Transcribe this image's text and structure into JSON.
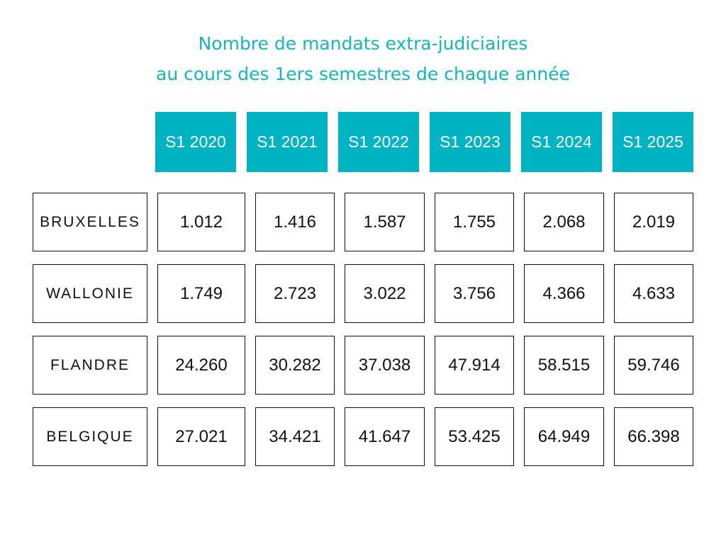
{
  "chart_data": {
    "type": "table",
    "title": "Nombre de mandats extra-judiciaires",
    "subtitle": "au cours des 1ers semestres de chaque année",
    "columns": [
      "S1 2020",
      "S1 2021",
      "S1 2022",
      "S1 2023",
      "S1 2024",
      "S1 2025"
    ],
    "rows": [
      {
        "label": "BRUXELLES",
        "values": [
          "1.012",
          "1.416",
          "1.587",
          "1.755",
          "2.068",
          "2.019"
        ]
      },
      {
        "label": "WALLONIE",
        "values": [
          "1.749",
          "2.723",
          "3.022",
          "3.756",
          "4.366",
          "4.633"
        ]
      },
      {
        "label": "FLANDRE",
        "values": [
          "24.260",
          "30.282",
          "37.038",
          "47.914",
          "58.515",
          "59.746"
        ]
      },
      {
        "label": "BELGIQUE",
        "values": [
          "27.021",
          "34.421",
          "41.647",
          "53.425",
          "64.949",
          "66.398"
        ]
      }
    ]
  },
  "colors": {
    "accent": "#00b3c3",
    "title": "#17b3c3",
    "border": "#111111"
  }
}
